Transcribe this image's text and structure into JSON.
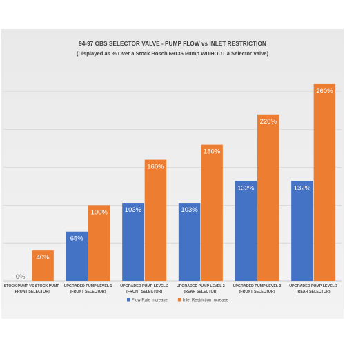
{
  "chart_data": {
    "type": "bar",
    "title": "94-97 OBS SELECTOR VALVE - PUMP FLOW vs INLET RESTRICTION",
    "subtitle": "(Displayed as % Over a Stock Bosch 69136 Pump WITHOUT a Selector Valve)",
    "categories": [
      [
        "STOCK PUMP VS STOCK PUMP",
        "(FRONT SELECTOR)"
      ],
      [
        "UPGRADED PUMP LEVEL 1",
        "(FRONT SELECTOR)"
      ],
      [
        "UPGRADED PUMP LEVEL 2",
        "(FRONT SELECTOR)"
      ],
      [
        "UPGRADED PUMP LEVEL 2",
        "(REAR SELECTOR)"
      ],
      [
        "UPGRADED PUMP LEVEL 3",
        "(FRONT SELECTOR)"
      ],
      [
        "UPGRADED PUMP LEVEL 3",
        "(REAR SELECTOR)"
      ]
    ],
    "series": [
      {
        "name": "Flow Rate Increase",
        "color": "#4472c4",
        "values": [
          0,
          65,
          103,
          103,
          132,
          132
        ],
        "labels": [
          "0%",
          "65%",
          "103%",
          "103%",
          "132%",
          "132%"
        ]
      },
      {
        "name": "Inlet Restriction Increase",
        "color": "#ed7d31",
        "values": [
          40,
          100,
          160,
          180,
          220,
          260
        ],
        "labels": [
          "40%",
          "100%",
          "160%",
          "180%",
          "220%",
          "260%"
        ]
      }
    ],
    "ylim": [
      0,
      280
    ],
    "grid": true,
    "legend_position": "bottom"
  }
}
